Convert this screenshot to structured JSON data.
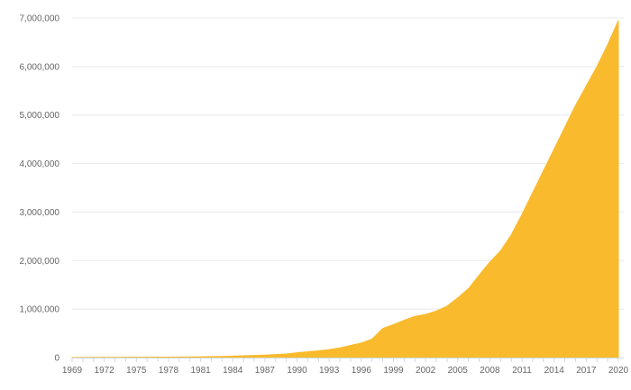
{
  "chart_data": {
    "type": "area",
    "title": "",
    "xlabel": "",
    "ylabel": "",
    "xlim": [
      1969,
      2020
    ],
    "ylim": [
      0,
      7000000
    ],
    "grid": true,
    "legend": "none",
    "colors": {
      "area": "#f9bb2d",
      "grid": "#e8e8e8",
      "axis": "#cfd8e3",
      "text": "#666666"
    },
    "x_tick_labels": [
      "1969",
      "1972",
      "1975",
      "1978",
      "1981",
      "1984",
      "1987",
      "1990",
      "1993",
      "1996",
      "1999",
      "2002",
      "2005",
      "2008",
      "2011",
      "2014",
      "2017",
      "2020"
    ],
    "y_tick_values": [
      0,
      1000000,
      2000000,
      3000000,
      4000000,
      5000000,
      6000000,
      7000000
    ],
    "y_tick_labels": [
      "0",
      "1,000,000",
      "2,000,000",
      "3,000,000",
      "4,000,000",
      "5,000,000",
      "6,000,000",
      "7,000,000"
    ],
    "x": [
      1969,
      1970,
      1971,
      1972,
      1973,
      1974,
      1975,
      1976,
      1977,
      1978,
      1979,
      1980,
      1981,
      1982,
      1983,
      1984,
      1985,
      1986,
      1987,
      1988,
      1989,
      1990,
      1991,
      1992,
      1993,
      1994,
      1995,
      1996,
      1997,
      1998,
      1999,
      2000,
      2001,
      2002,
      2003,
      2004,
      2005,
      2006,
      2007,
      2008,
      2009,
      2010,
      2011,
      2012,
      2013,
      2014,
      2015,
      2016,
      2017,
      2018,
      2019,
      2020
    ],
    "values": [
      2000,
      3000,
      3500,
      4000,
      5000,
      6000,
      7000,
      8000,
      9000,
      10000,
      12000,
      14000,
      17000,
      20000,
      24000,
      30000,
      36000,
      44000,
      52000,
      62000,
      75000,
      100000,
      120000,
      140000,
      165000,
      200000,
      250000,
      300000,
      380000,
      600000,
      680000,
      770000,
      850000,
      890000,
      960000,
      1060000,
      1230000,
      1420000,
      1700000,
      1970000,
      2200000,
      2530000,
      2950000,
      3400000,
      3850000,
      4300000,
      4750000,
      5200000,
      5600000,
      6000000,
      6450000,
      6950000
    ]
  }
}
